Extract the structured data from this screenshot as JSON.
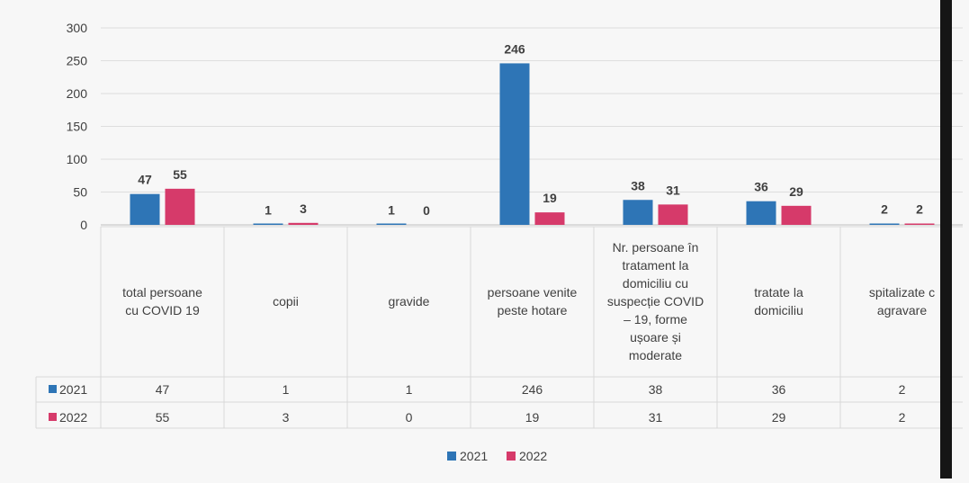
{
  "chart_data": {
    "type": "bar",
    "categories": [
      [
        "total persoane",
        "cu COVID 19"
      ],
      [
        "copii"
      ],
      [
        "gravide"
      ],
      [
        "persoane venite",
        "peste hotare"
      ],
      [
        "Nr.  persoane  în",
        "tratament la",
        "domiciliu cu",
        "suspecție COVID",
        "– 19, forme",
        "ușoare și",
        "moderate"
      ],
      [
        "tratate la",
        "domiciliu"
      ],
      [
        "spitalizate c",
        "agravare"
      ]
    ],
    "series": [
      {
        "name": "2021",
        "color": "#2e75b6",
        "values": [
          47,
          1,
          1,
          246,
          38,
          36,
          2
        ]
      },
      {
        "name": "2022",
        "color": "#d63a6a",
        "values": [
          55,
          3,
          0,
          19,
          31,
          29,
          2
        ]
      }
    ],
    "yticks": [
      "0",
      "50",
      "100",
      "150",
      "200",
      "250",
      "300"
    ],
    "ylim": [
      0,
      300
    ],
    "legend_position": "bottom",
    "data_table": true,
    "grid": true
  }
}
